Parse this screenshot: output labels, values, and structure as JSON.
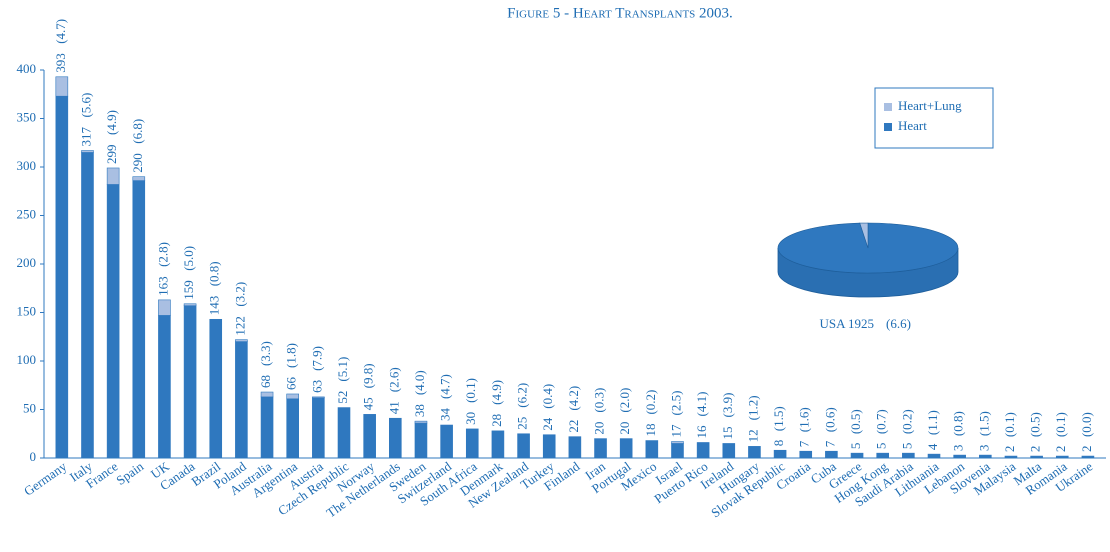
{
  "chart_data": [
    {
      "type": "bar",
      "title": "Figure 5 - Heart Transplants 2003.",
      "categories": [
        "Germany",
        "Italy",
        "France",
        "Spain",
        "UK",
        "Canada",
        "Brazil",
        "Poland",
        "Australia",
        "Argentina",
        "Austria",
        "Czech Republic",
        "Norway",
        "The Netherlands",
        "Sweden",
        "Switzerland",
        "South Africa",
        "Denmark",
        "New Zealand",
        "Turkey",
        "Finland",
        "Iran",
        "Portugal",
        "Mexico",
        "Israel",
        "Puerto Rico",
        "Ireland",
        "Hungary",
        "Slovak Republic",
        "Croatia",
        "Cuba",
        "Greece",
        "Hong Kong",
        "Saudi Arabia",
        "Lithuania",
        "Lebanon",
        "Slovenia",
        "Malaysia",
        "Malta",
        "Romania",
        "Ukraine"
      ],
      "series": [
        {
          "name": "Heart",
          "color": "#2f78bf",
          "values": [
            373,
            315,
            282,
            286,
            147,
            157,
            143,
            120,
            63,
            61,
            62,
            52,
            45,
            41,
            36,
            34,
            30,
            28,
            25,
            24,
            22,
            20,
            20,
            18,
            15,
            16,
            15,
            12,
            8,
            7,
            7,
            5,
            5,
            5,
            4,
            3,
            3,
            2,
            2,
            2,
            2
          ]
        },
        {
          "name": "Heart+Lung",
          "color": "#a9bfe2",
          "values": [
            20,
            2,
            17,
            4,
            16,
            2,
            0,
            2,
            5,
            5,
            1,
            0,
            0,
            0,
            2,
            0,
            0,
            0,
            0,
            0,
            0,
            0,
            0,
            0,
            2,
            0,
            0,
            0,
            0,
            0,
            0,
            0,
            0,
            0,
            0,
            0,
            0,
            0,
            0,
            0,
            0
          ]
        }
      ],
      "totals": [
        393,
        317,
        299,
        290,
        163,
        159,
        143,
        122,
        68,
        66,
        63,
        52,
        45,
        41,
        38,
        34,
        30,
        28,
        25,
        24,
        22,
        20,
        20,
        18,
        17,
        16,
        15,
        12,
        8,
        7,
        7,
        5,
        5,
        5,
        4,
        3,
        3,
        2,
        2,
        2,
        2
      ],
      "rate_labels": [
        "(4.7)",
        "(5.6)",
        "(4.9)",
        "(6.8)",
        "(2.8)",
        "(5.0)",
        "(0.8)",
        "(3.2)",
        "(3.3)",
        "(1.8)",
        "(7.9)",
        "(5.1)",
        "(9.8)",
        "(2.6)",
        "(4.0)",
        "(4.7)",
        "(0.1)",
        "(4.9)",
        "(6.2)",
        "(0.4)",
        "(4.2)",
        "(0.3)",
        "(2.0)",
        "(0.2)",
        "(2.5)",
        "(4.1)",
        "(3.9)",
        "(1.2)",
        "(1.5)",
        "(1.6)",
        "(0.6)",
        "(0.5)",
        "(0.7)",
        "(0.2)",
        "(1.1)",
        "(0.8)",
        "(1.5)",
        "(0.1)",
        "(0.5)",
        "(0.1)",
        "(0.0)"
      ],
      "ylim": [
        0,
        400
      ],
      "yticks": [
        0,
        50,
        100,
        150,
        200,
        250,
        300,
        350,
        400
      ],
      "legend": "upper right"
    },
    {
      "type": "pie",
      "categories": [
        "Heart",
        "Heart+Lung"
      ],
      "values": [
        1897,
        28
      ],
      "colors": [
        "#2f78bf",
        "#a9bfe2"
      ],
      "label": "USA 1925",
      "rate_label": "(6.6)"
    }
  ]
}
